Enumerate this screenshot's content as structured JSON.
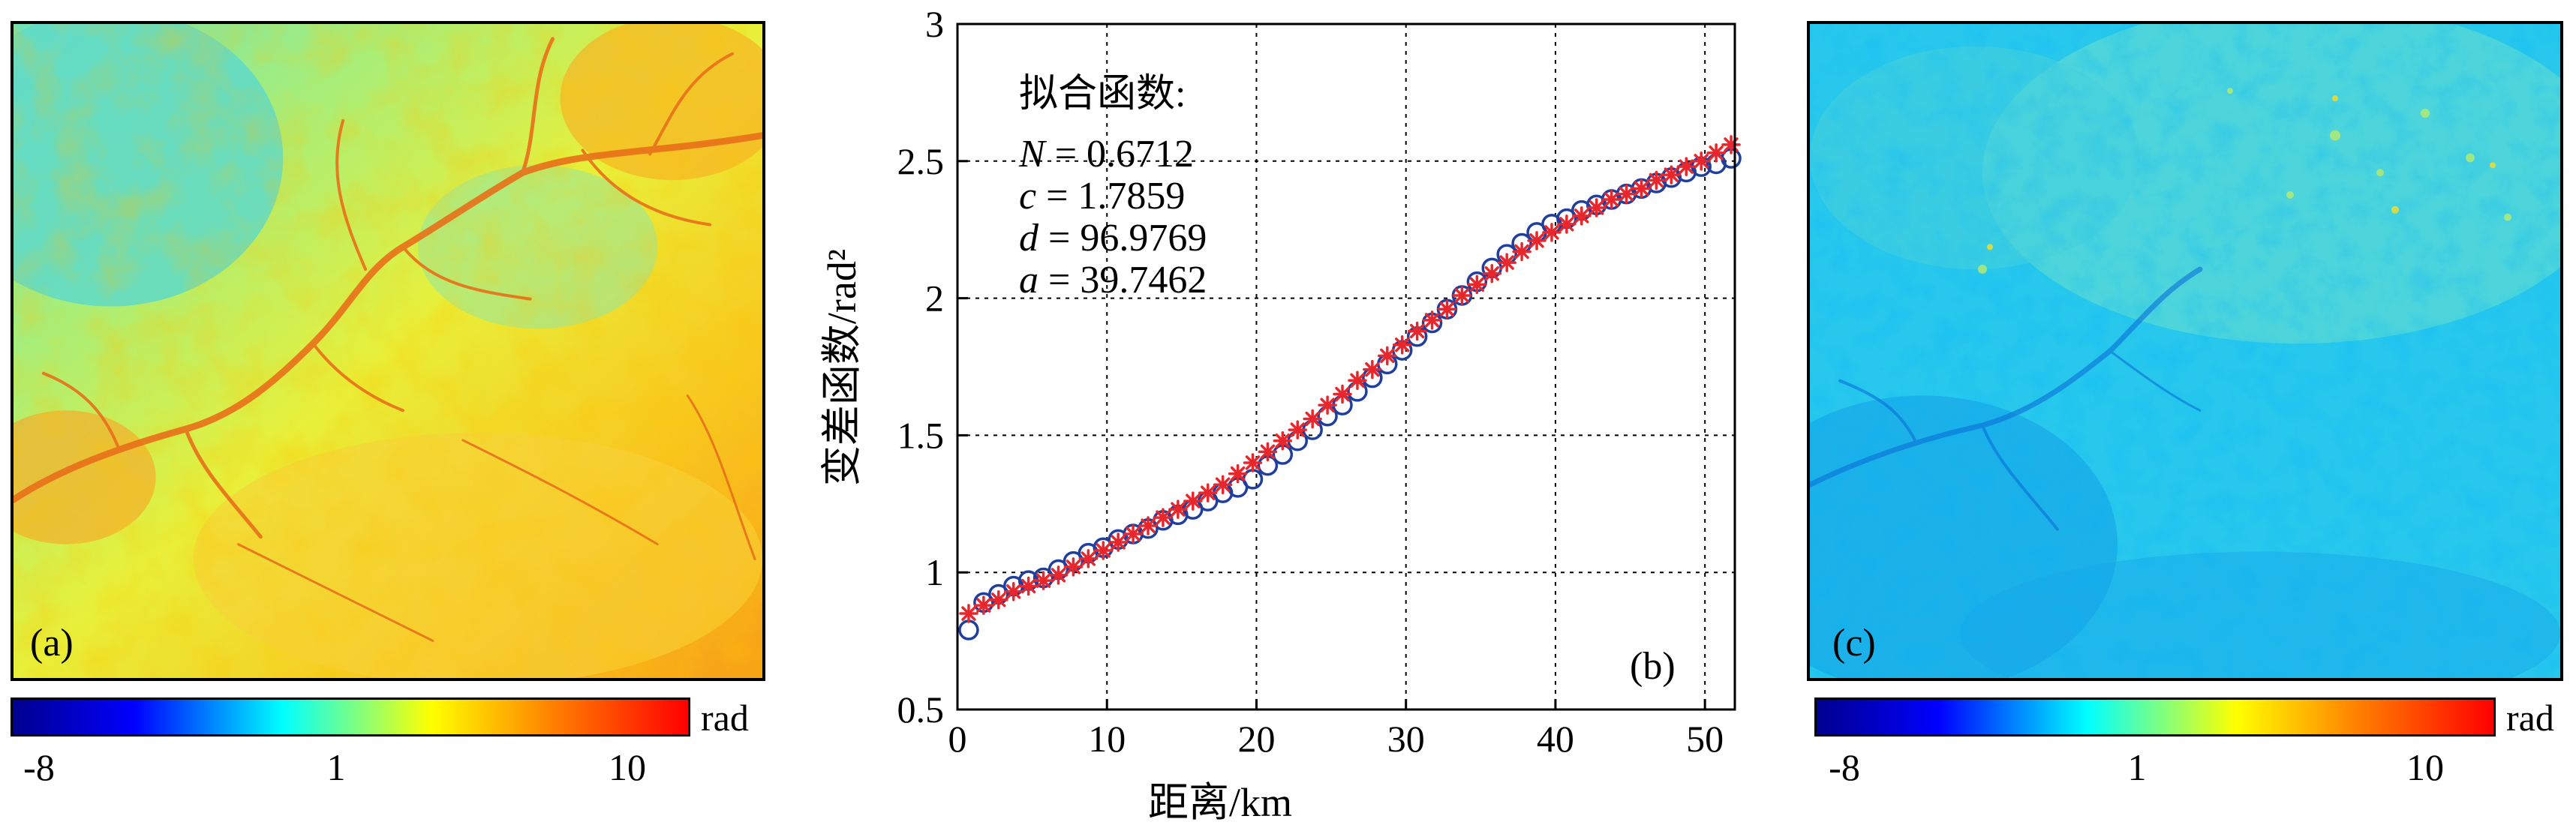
{
  "panels": {
    "a": {
      "label": "(a)"
    },
    "b": {
      "label": "(b)"
    },
    "c": {
      "label": "(c)"
    }
  },
  "colorbar": {
    "unit": "rad",
    "ticks": [
      "-8",
      "1",
      "10"
    ],
    "colors": [
      "#00008f",
      "#0000ff",
      "#00ffff",
      "#ffff00",
      "#ff8000",
      "#ff0000"
    ]
  },
  "fit": {
    "title": "拟合函数:",
    "params": [
      {
        "name": "N",
        "value": "0.6712"
      },
      {
        "name": "c",
        "value": "1.7859"
      },
      {
        "name": "d",
        "value": "96.9769"
      },
      {
        "name": "a",
        "value": "39.7462"
      }
    ]
  },
  "chart_data": {
    "type": "scatter",
    "xlabel": "距离/km",
    "ylabel": "变差函数/rad²",
    "xlim": [
      0,
      52
    ],
    "ylim": [
      0.5,
      3
    ],
    "xticks": [
      0,
      10,
      20,
      30,
      40,
      50
    ],
    "yticks": [
      0.5,
      1,
      1.5,
      2,
      2.5,
      3
    ],
    "xtick_labels": [
      "0",
      "10",
      "20",
      "30",
      "40",
      "50"
    ],
    "ytick_labels": [
      "0.5",
      "1",
      "1.5",
      "2",
      "2.5",
      "3"
    ],
    "grid": true,
    "series": [
      {
        "marker": "circle",
        "color": "#1f3f9f",
        "x": [
          0.75,
          1.75,
          2.75,
          3.75,
          4.75,
          5.75,
          6.75,
          7.75,
          8.75,
          9.75,
          10.75,
          11.75,
          12.75,
          13.75,
          14.75,
          15.75,
          16.75,
          17.75,
          18.75,
          19.75,
          20.75,
          21.75,
          22.75,
          23.75,
          24.75,
          25.75,
          26.75,
          27.75,
          28.75,
          29.75,
          30.75,
          31.75,
          32.75,
          33.75,
          34.75,
          35.75,
          36.75,
          37.75,
          38.75,
          39.75,
          40.75,
          41.75,
          42.75,
          43.75,
          44.75,
          45.75,
          46.75,
          47.75,
          48.75,
          49.75,
          50.75,
          51.75
        ],
        "y": [
          0.79,
          0.89,
          0.92,
          0.95,
          0.97,
          0.98,
          1.01,
          1.04,
          1.07,
          1.09,
          1.12,
          1.14,
          1.16,
          1.19,
          1.21,
          1.23,
          1.26,
          1.29,
          1.31,
          1.34,
          1.39,
          1.43,
          1.48,
          1.52,
          1.57,
          1.61,
          1.66,
          1.71,
          1.76,
          1.81,
          1.86,
          1.91,
          1.96,
          2.01,
          2.06,
          2.11,
          2.16,
          2.2,
          2.24,
          2.27,
          2.29,
          2.32,
          2.34,
          2.36,
          2.38,
          2.4,
          2.42,
          2.44,
          2.46,
          2.48,
          2.49,
          2.51
        ]
      },
      {
        "marker": "asterisk",
        "color": "#e8262b",
        "x": [
          0.75,
          1.75,
          2.75,
          3.75,
          4.75,
          5.75,
          6.75,
          7.75,
          8.75,
          9.75,
          10.75,
          11.75,
          12.75,
          13.75,
          14.75,
          15.75,
          16.75,
          17.75,
          18.75,
          19.75,
          20.75,
          21.75,
          22.75,
          23.75,
          24.75,
          25.75,
          26.75,
          27.75,
          28.75,
          29.75,
          30.75,
          31.75,
          32.75,
          33.75,
          34.75,
          35.75,
          36.75,
          37.75,
          38.75,
          39.75,
          40.75,
          41.75,
          42.75,
          43.75,
          44.75,
          45.75,
          46.75,
          47.75,
          48.75,
          49.75,
          50.75,
          51.75
        ],
        "y": [
          0.85,
          0.88,
          0.9,
          0.93,
          0.95,
          0.97,
          0.99,
          1.02,
          1.05,
          1.08,
          1.11,
          1.14,
          1.17,
          1.2,
          1.23,
          1.26,
          1.29,
          1.32,
          1.36,
          1.4,
          1.44,
          1.48,
          1.52,
          1.56,
          1.61,
          1.65,
          1.7,
          1.74,
          1.79,
          1.83,
          1.88,
          1.92,
          1.96,
          2.01,
          2.05,
          2.09,
          2.13,
          2.17,
          2.21,
          2.24,
          2.27,
          2.3,
          2.33,
          2.36,
          2.38,
          2.4,
          2.43,
          2.45,
          2.48,
          2.5,
          2.53,
          2.56
        ]
      }
    ]
  }
}
